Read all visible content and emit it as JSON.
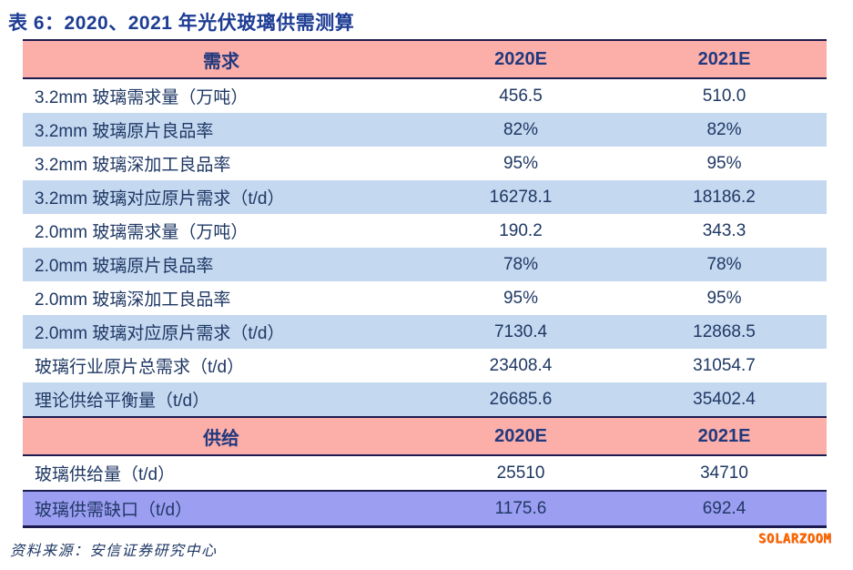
{
  "page": {
    "title": "表 6：2020、2021 年光伏玻璃供需测算",
    "source_note": "资料来源：安信证券研究中心",
    "watermark": "SOLARZOOM"
  },
  "colors": {
    "header_pink": "#FCAEA9",
    "row_light_blue": "#C4D8F0",
    "row_lavender": "#9C9EF2",
    "border_navy": "#1C1C50",
    "text_navy": "#1F3864",
    "title_blue": "#1D3C94",
    "watermark_orange": "#FF6A00"
  },
  "table": {
    "demand_header": {
      "label": "需求",
      "y2020": "2020E",
      "y2021": "2021E"
    },
    "supply_header": {
      "label": "供给",
      "y2020": "2020E",
      "y2021": "2021E"
    },
    "demand_rows": [
      {
        "label": "3.2mm 玻璃需求量（万吨）",
        "v2020": "456.5",
        "v2021": "510.0"
      },
      {
        "label": "3.2mm 玻璃原片良品率",
        "v2020": "82%",
        "v2021": "82%"
      },
      {
        "label": "3.2mm 玻璃深加工良品率",
        "v2020": "95%",
        "v2021": "95%"
      },
      {
        "label": "3.2mm 玻璃对应原片需求（t/d）",
        "v2020": "16278.1",
        "v2021": "18186.2"
      },
      {
        "label": "2.0mm 玻璃需求量（万吨）",
        "v2020": "190.2",
        "v2021": "343.3"
      },
      {
        "label": "2.0mm 玻璃原片良品率",
        "v2020": "78%",
        "v2021": "78%"
      },
      {
        "label": "2.0mm 玻璃深加工良品率",
        "v2020": "95%",
        "v2021": "95%"
      },
      {
        "label": "2.0mm 玻璃对应原片需求（t/d）",
        "v2020": "7130.4",
        "v2021": "12868.5"
      },
      {
        "label": "玻璃行业原片总需求（t/d）",
        "v2020": "23408.4",
        "v2021": "31054.7"
      },
      {
        "label": "理论供给平衡量（t/d）",
        "v2020": "26685.6",
        "v2021": "35402.4"
      }
    ],
    "supply_rows": [
      {
        "label": "玻璃供给量（t/d）",
        "v2020": "25510",
        "v2021": "34710"
      },
      {
        "label": "玻璃供需缺口（t/d）",
        "v2020": "1175.6",
        "v2021": "692.4"
      }
    ]
  }
}
